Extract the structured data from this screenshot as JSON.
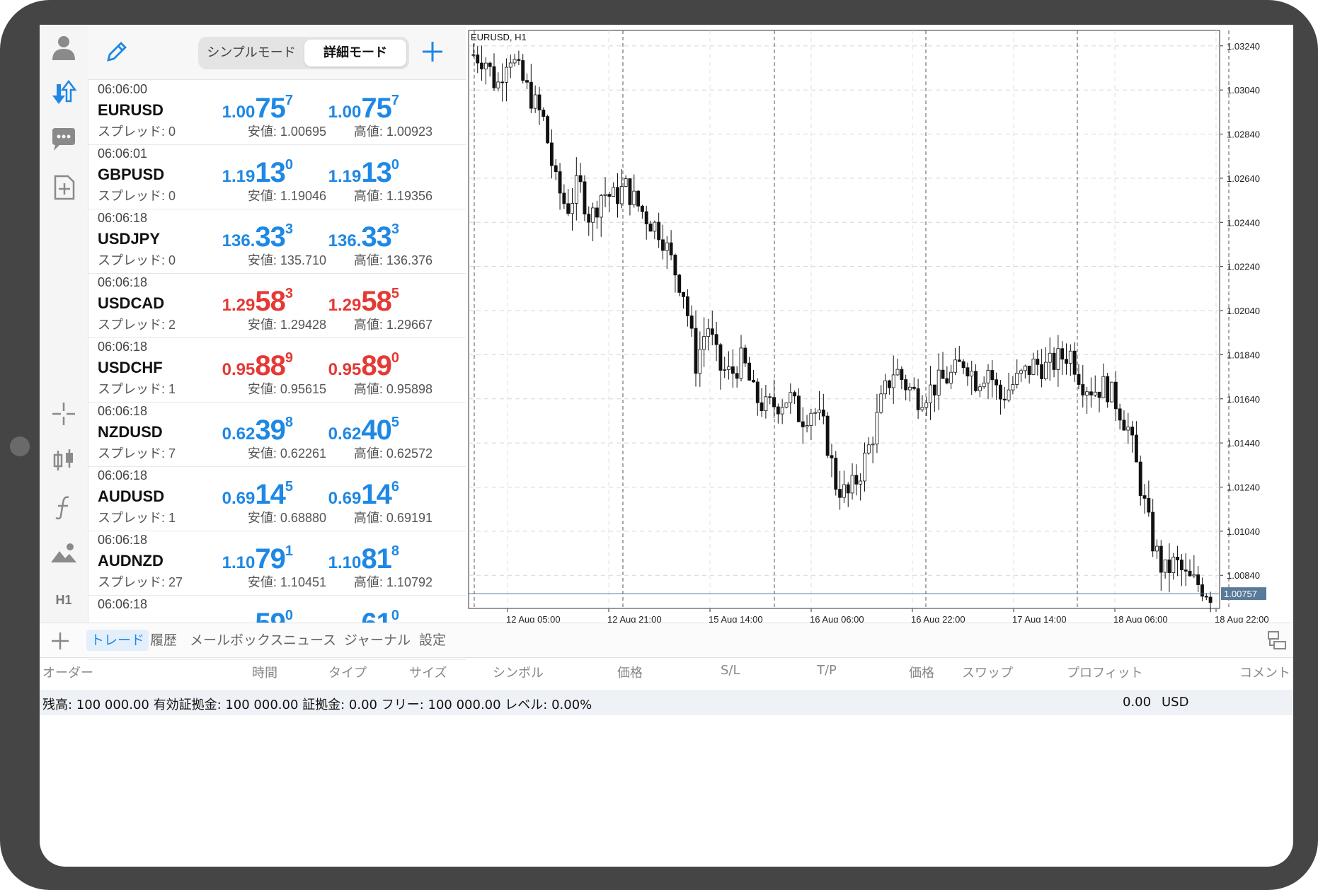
{
  "mode_toggle": {
    "simple": "シンプルモード",
    "detailed": "詳細モード",
    "active": "detailed"
  },
  "quotes": [
    {
      "time": "06:06:00",
      "symbol": "EURUSD",
      "spread": "スプレッド: 0",
      "bid": {
        "small": "1.00",
        "big": "75",
        "sup": "7"
      },
      "ask": {
        "small": "1.00",
        "big": "75",
        "sup": "7"
      },
      "low": "安値: 1.00695",
      "high": "高値: 1.00923",
      "color": "blue"
    },
    {
      "time": "06:06:01",
      "symbol": "GBPUSD",
      "spread": "スプレッド: 0",
      "bid": {
        "small": "1.19",
        "big": "13",
        "sup": "0"
      },
      "ask": {
        "small": "1.19",
        "big": "13",
        "sup": "0"
      },
      "low": "安値: 1.19046",
      "high": "高値: 1.19356",
      "color": "blue"
    },
    {
      "time": "06:06:18",
      "symbol": "USDJPY",
      "spread": "スプレッド: 0",
      "bid": {
        "small": "136.",
        "big": "33",
        "sup": "3"
      },
      "ask": {
        "small": "136.",
        "big": "33",
        "sup": "3"
      },
      "low": "安値: 135.710",
      "high": "高値: 136.376",
      "color": "blue"
    },
    {
      "time": "06:06:18",
      "symbol": "USDCAD",
      "spread": "スプレッド: 2",
      "bid": {
        "small": "1.29",
        "big": "58",
        "sup": "3"
      },
      "ask": {
        "small": "1.29",
        "big": "58",
        "sup": "5"
      },
      "low": "安値: 1.29428",
      "high": "高値: 1.29667",
      "color": "red"
    },
    {
      "time": "06:06:18",
      "symbol": "USDCHF",
      "spread": "スプレッド: 1",
      "bid": {
        "small": "0.95",
        "big": "88",
        "sup": "9"
      },
      "ask": {
        "small": "0.95",
        "big": "89",
        "sup": "0"
      },
      "low": "安値: 0.95615",
      "high": "高値: 0.95898",
      "color": "red"
    },
    {
      "time": "06:06:18",
      "symbol": "NZDUSD",
      "spread": "スプレッド: 7",
      "bid": {
        "small": "0.62",
        "big": "39",
        "sup": "8"
      },
      "ask": {
        "small": "0.62",
        "big": "40",
        "sup": "5"
      },
      "low": "安値: 0.62261",
      "high": "高値: 0.62572",
      "color": "blue"
    },
    {
      "time": "06:06:18",
      "symbol": "AUDUSD",
      "spread": "スプレッド: 1",
      "bid": {
        "small": "0.69",
        "big": "14",
        "sup": "5"
      },
      "ask": {
        "small": "0.69",
        "big": "14",
        "sup": "6"
      },
      "low": "安値: 0.68880",
      "high": "高値: 0.69191",
      "color": "blue"
    },
    {
      "time": "06:06:18",
      "symbol": "AUDNZD",
      "spread": "スプレッド: 27",
      "bid": {
        "small": "1.10",
        "big": "79",
        "sup": "1"
      },
      "ask": {
        "small": "1.10",
        "big": "81",
        "sup": "8"
      },
      "low": "安値: 1.10451",
      "high": "高値: 1.10792",
      "color": "blue"
    },
    {
      "time": "06:06:18",
      "symbol": "",
      "spread": "",
      "bid": {
        "small": "",
        "big": "59",
        "sup": "0"
      },
      "ask": {
        "small": "",
        "big": "61",
        "sup": "0"
      },
      "low": "",
      "high": "",
      "color": "blue"
    }
  ],
  "rail": {
    "timeframe": "H1"
  },
  "chart_data": {
    "type": "candlestick",
    "title": "EURUSD, H1",
    "ylim": [
      1.0069,
      1.0331
    ],
    "y_ticks": [
      "1.03240",
      "1.03040",
      "1.02840",
      "1.02640",
      "1.02440",
      "1.02240",
      "1.02040",
      "1.01840",
      "1.01640",
      "1.01440",
      "1.01240",
      "1.01040",
      "1.00840"
    ],
    "x_ticks": [
      "12 Aug 05:00",
      "12 Aug 21:00",
      "15 Aug 14:00",
      "16 Aug 06:00",
      "16 Aug 22:00",
      "17 Aug 14:00",
      "18 Aug 06:00",
      "18 Aug 22:00"
    ],
    "period_separators": [
      "12 Aug",
      "15 Aug",
      "16 Aug",
      "17 Aug",
      "18 Aug"
    ],
    "current_price": "1.00757",
    "grid": true,
    "close_path": [
      1.032,
      1.0318,
      1.0305,
      1.0322,
      1.031,
      1.03,
      1.029,
      1.0262,
      1.025,
      1.0262,
      1.0245,
      1.0258,
      1.0255,
      1.026,
      1.0252,
      1.0245,
      1.024,
      1.0225,
      1.0212,
      1.018,
      1.0198,
      1.0178,
      1.0175,
      1.0182,
      1.0165,
      1.016,
      1.0162,
      1.0165,
      1.0155,
      1.016,
      1.015,
      1.0125,
      1.012,
      1.013,
      1.0145,
      1.0165,
      1.0178,
      1.017,
      1.0165,
      1.0168,
      1.0172,
      1.0175,
      1.0182,
      1.0172,
      1.0178,
      1.0164,
      1.017,
      1.0175,
      1.018,
      1.0178,
      1.0182,
      1.0185,
      1.0172,
      1.0168,
      1.017,
      1.0162,
      1.015,
      1.0125,
      1.01,
      1.0085,
      1.009,
      1.0082,
      1.008,
      1.00757
    ],
    "candle_count": 180
  },
  "toolbox": {
    "tabs": [
      "トレード",
      "履歴",
      "メールボックス",
      "ニュース",
      "ジャーナル",
      "設定"
    ],
    "active_tab": 0,
    "columns": [
      "オーダー",
      "時間",
      "タイプ",
      "サイズ",
      "シンボル",
      "価格",
      "S/L",
      "T/P",
      "価格",
      "スワップ",
      "プロフィット",
      "コメント"
    ],
    "balance_text": "残高: 100 000.00 有効証拠金: 100 000.00 証拠金: 0.00 フリー: 100 000.00 レベル: 0.00%",
    "balance_value": "0.00",
    "balance_currency": "USD"
  },
  "colors": {
    "accent": "#1e88e5",
    "down": "#e53935",
    "bezel": "#454545"
  }
}
